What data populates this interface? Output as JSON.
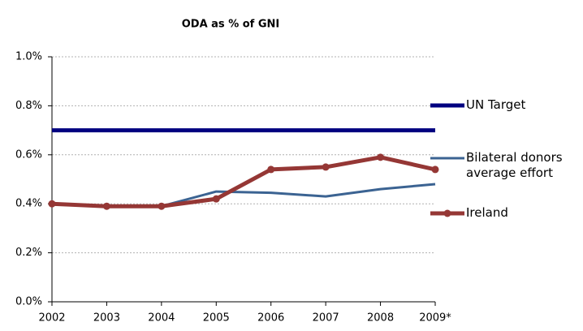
{
  "chart_data": {
    "type": "line",
    "title": "ODA as % of GNI",
    "categories": [
      "2002",
      "2003",
      "2004",
      "2005",
      "2006",
      "2007",
      "2008",
      "2009*"
    ],
    "ylim": [
      0,
      1.0
    ],
    "yticks": [
      {
        "value": 0,
        "label": "0.0%"
      },
      {
        "value": 0.2,
        "label": "0.2%"
      },
      {
        "value": 0.4,
        "label": "0.4%"
      },
      {
        "value": 0.6,
        "label": "0.6%"
      },
      {
        "value": 0.8,
        "label": "0.8%"
      },
      {
        "value": 1.0,
        "label": "1.0%"
      }
    ],
    "grid": true,
    "legend": "right",
    "series": [
      {
        "name": "UN Target",
        "color": "#000080",
        "width": 5,
        "values": [
          0.7,
          0.7,
          0.7,
          0.7,
          0.7,
          0.7,
          0.7,
          0.7
        ]
      },
      {
        "name": "Bilateral donors average effort",
        "color": "#3b6392",
        "width": 3,
        "values": [
          0.4,
          0.39,
          0.39,
          0.45,
          0.445,
          0.43,
          0.46,
          0.48
        ]
      },
      {
        "name": "Ireland",
        "color": "#953735",
        "width": 5,
        "markers": true,
        "values": [
          0.4,
          0.39,
          0.39,
          0.42,
          0.54,
          0.55,
          0.59,
          0.54
        ]
      }
    ]
  }
}
